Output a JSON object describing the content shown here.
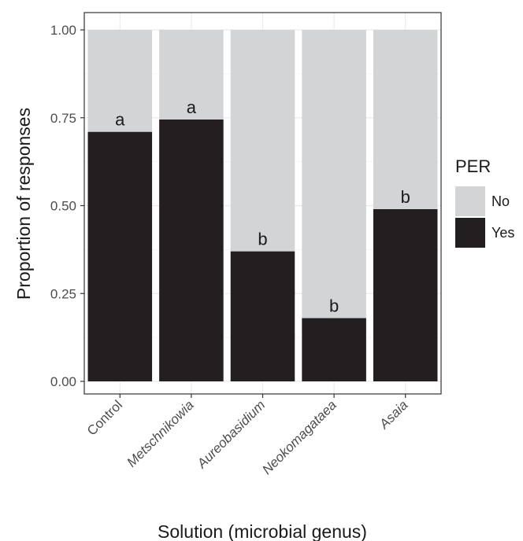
{
  "chart_data": {
    "type": "bar",
    "stacked": true,
    "categories": [
      "Control",
      "Metschnikowia",
      "Aureobasidium",
      "Neokomagataea",
      "Asaia"
    ],
    "category_italic": [
      false,
      true,
      true,
      true,
      true
    ],
    "series": [
      {
        "name": "Yes",
        "values": [
          0.71,
          0.745,
          0.37,
          0.18,
          0.49
        ]
      },
      {
        "name": "No",
        "values": [
          0.29,
          0.255,
          0.63,
          0.82,
          0.51
        ]
      }
    ],
    "significance_letters": [
      "a",
      "a",
      "b",
      "b",
      "b"
    ],
    "xlabel": "Solution (microbial genus)",
    "ylabel": "Proportion of responses",
    "ylim": [
      0,
      1
    ],
    "yticks": [
      0,
      0.25,
      0.5,
      0.75,
      1
    ],
    "ytick_labels": [
      "0.00",
      "0.25",
      "0.50",
      "0.75",
      "1.00"
    ],
    "grid": true,
    "legend": {
      "title": "PER",
      "position": "right",
      "entries": [
        {
          "label": "No",
          "color": "#d3d4d6"
        },
        {
          "label": "Yes",
          "color": "#231f20"
        }
      ]
    },
    "colors": {
      "Yes": "#231f20",
      "No": "#d3d4d6",
      "panel_border": "#333333",
      "grid": "#ebebeb"
    }
  }
}
